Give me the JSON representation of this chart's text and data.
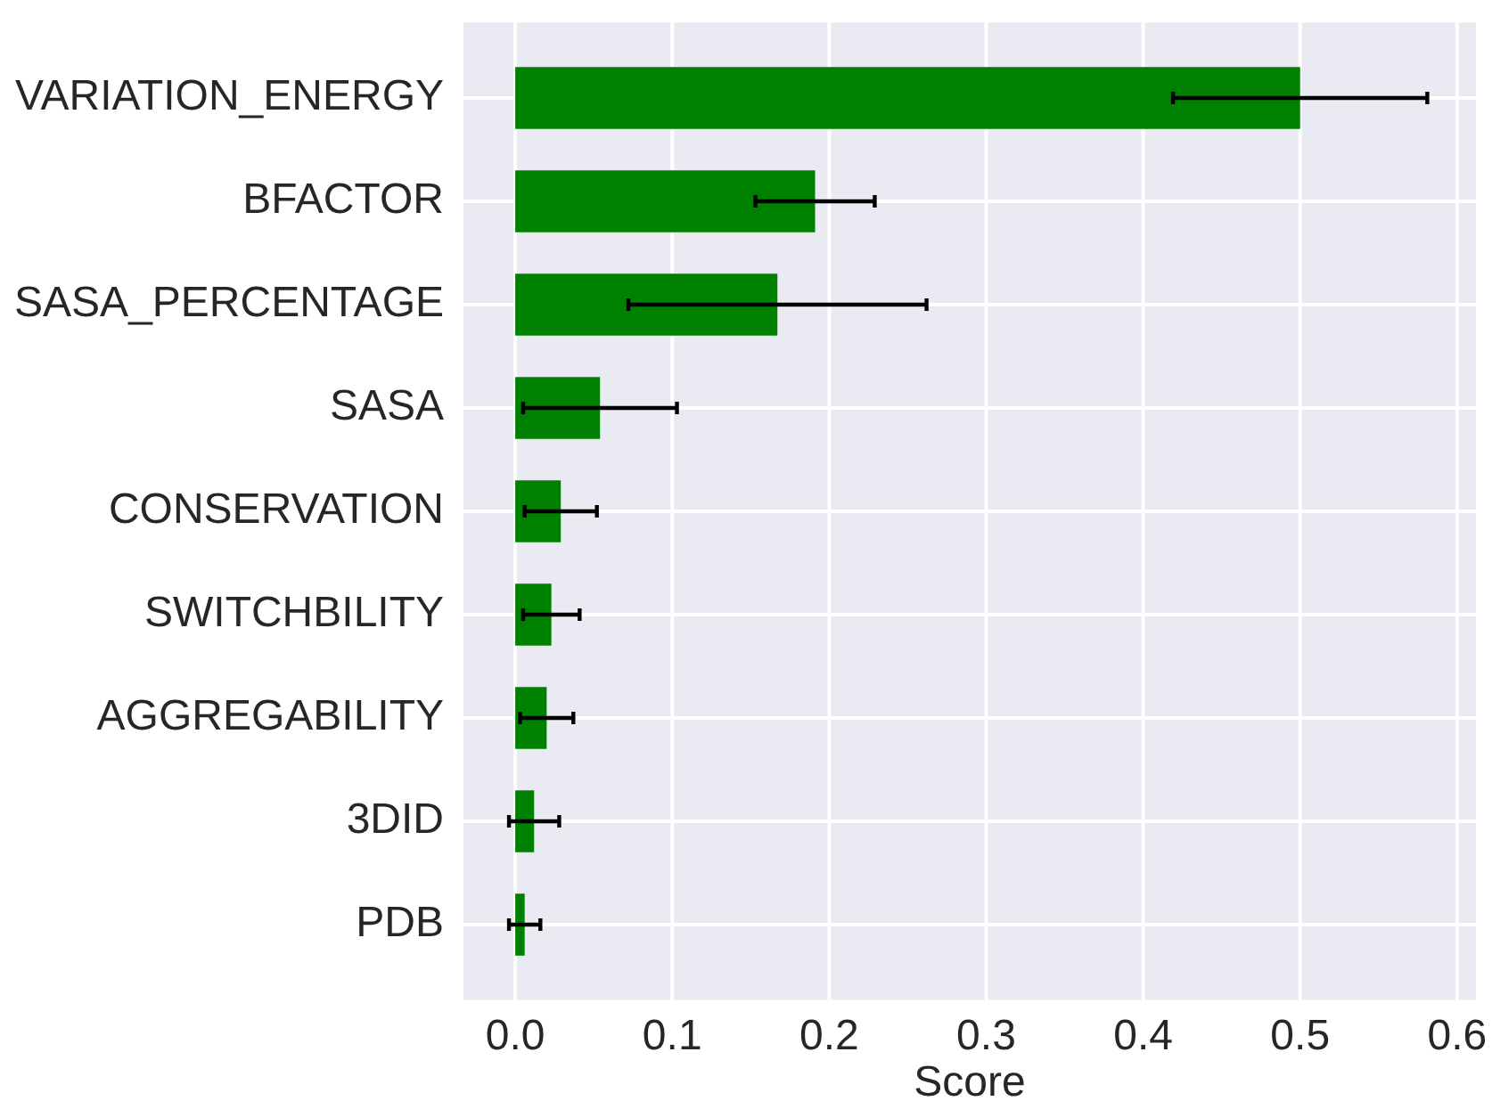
{
  "chart_data": {
    "type": "bar",
    "orientation": "horizontal",
    "xlabel": "Score",
    "categories": [
      "VARIATION_ENERGY",
      "BFACTOR",
      "SASA_PERCENTAGE",
      "SASA",
      "CONSERVATION",
      "SWITCHBILITY",
      "AGGREGABILITY",
      "3DID",
      "PDB"
    ],
    "values": [
      0.5,
      0.191,
      0.167,
      0.054,
      0.029,
      0.023,
      0.02,
      0.012,
      0.006
    ],
    "errors": [
      0.081,
      0.038,
      0.095,
      0.049,
      0.023,
      0.018,
      0.017,
      0.016,
      0.01
    ],
    "color": "#008000",
    "xlim": [
      -0.033,
      0.612
    ],
    "xticks": [
      {
        "value": 0,
        "label": "0.0"
      },
      0.1,
      0.2,
      0.3,
      0.4,
      0.5,
      0.6
    ],
    "grid": true
  }
}
